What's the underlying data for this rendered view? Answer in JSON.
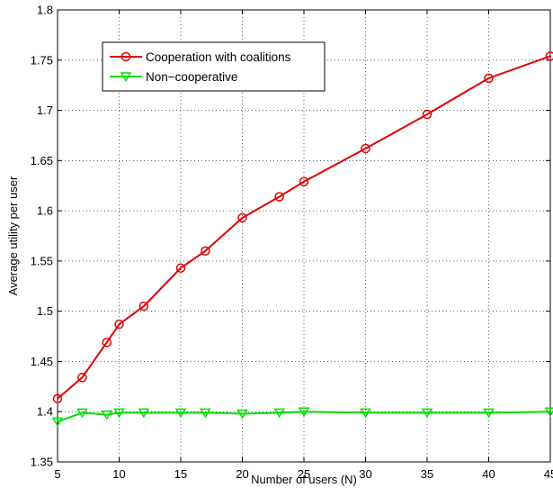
{
  "chart_data": {
    "type": "line",
    "title": "",
    "xlabel": "Number of users (N)",
    "ylabel": "Average utility per user",
    "xlim": [
      5,
      45
    ],
    "ylim": [
      1.35,
      1.8
    ],
    "xticks": [
      5,
      10,
      15,
      20,
      25,
      30,
      35,
      40,
      45
    ],
    "yticks": [
      1.35,
      1.4,
      1.45,
      1.5,
      1.55,
      1.6,
      1.65,
      1.7,
      1.75,
      1.8
    ],
    "xtick_labels": [
      "5",
      "10",
      "15",
      "20",
      "25",
      "30",
      "35",
      "40",
      "45"
    ],
    "ytick_labels": [
      "1.35",
      "1.4",
      "1.45",
      "1.5",
      "1.55",
      "1.6",
      "1.65",
      "1.7",
      "1.75",
      "1.8"
    ],
    "grid": true,
    "legend_position": "top-left",
    "series": [
      {
        "name": "Cooperation with coalitions",
        "color": "#e00000",
        "marker": "circle",
        "points": [
          [
            5,
            1.413
          ],
          [
            7,
            1.434
          ],
          [
            9,
            1.469
          ],
          [
            10,
            1.487
          ],
          [
            12,
            1.505
          ],
          [
            15,
            1.543
          ],
          [
            17,
            1.56
          ],
          [
            20,
            1.593
          ],
          [
            23,
            1.614
          ],
          [
            25,
            1.629
          ],
          [
            30,
            1.662
          ],
          [
            35,
            1.696
          ],
          [
            40,
            1.732
          ],
          [
            45,
            1.754
          ]
        ]
      },
      {
        "name": "Non−cooperative",
        "color": "#00e000",
        "marker": "triangle-down",
        "points": [
          [
            5,
            1.39
          ],
          [
            7,
            1.399
          ],
          [
            9,
            1.397
          ],
          [
            10,
            1.399
          ],
          [
            12,
            1.399
          ],
          [
            15,
            1.399
          ],
          [
            17,
            1.399
          ],
          [
            20,
            1.398
          ],
          [
            23,
            1.399
          ],
          [
            25,
            1.4
          ],
          [
            30,
            1.399
          ],
          [
            35,
            1.399
          ],
          [
            40,
            1.399
          ],
          [
            45,
            1.4
          ]
        ]
      }
    ]
  }
}
